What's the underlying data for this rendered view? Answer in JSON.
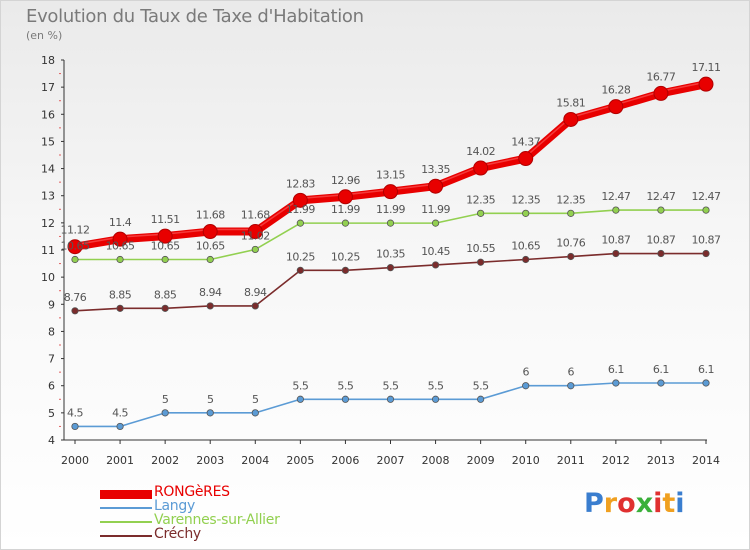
{
  "title": "Evolution du Taux de Taxe d'Habitation",
  "unit": "(en %)",
  "logo": {
    "text": "Proxiti",
    "letters": [
      "P",
      "r",
      "o",
      "x",
      "i",
      "t",
      "i"
    ],
    "colors": [
      "#3a7ecf",
      "#f0a020",
      "#e03030",
      "#3ab03a",
      "#e03030",
      "#f0a020",
      "#3a7ecf"
    ]
  },
  "chart_data": {
    "type": "line",
    "title": "Evolution du Taux de Taxe d'Habitation",
    "ylabel": "(en %)",
    "xlabel": "",
    "ylim": [
      4,
      18
    ],
    "yticks": [
      "4",
      "5",
      "6",
      "7",
      "8",
      "9",
      "10",
      "11",
      "12",
      "13",
      "14",
      "15",
      "16",
      "17",
      "18"
    ],
    "grid": false,
    "legend_position": "bottom-left",
    "categories": [
      "2000",
      "2001",
      "2002",
      "2003",
      "2004",
      "2005",
      "2006",
      "2007",
      "2008",
      "2009",
      "2010",
      "2011",
      "2012",
      "2013",
      "2014"
    ],
    "series": [
      {
        "name": "RONGèRES",
        "color": "#e80000",
        "values": [
          11.12,
          11.4,
          11.51,
          11.68,
          11.68,
          12.83,
          12.96,
          13.15,
          13.35,
          14.02,
          14.37,
          15.81,
          16.28,
          16.77,
          17.11
        ],
        "labels": [
          "11.12",
          "11.4",
          "11.51",
          "11.68",
          "11.68",
          "12.83",
          "12.96",
          "13.15",
          "13.35",
          "14.02",
          "14.37",
          "15.81",
          "16.28",
          "16.77",
          "17.11"
        ]
      },
      {
        "name": "Langy",
        "color": "#5b9bd5",
        "values": [
          4.5,
          4.5,
          5,
          5,
          5,
          5.5,
          5.5,
          5.5,
          5.5,
          5.5,
          6,
          6,
          6.1,
          6.1,
          6.1
        ],
        "labels": [
          "4.5",
          "4.5",
          "5",
          "5",
          "5",
          "5.5",
          "5.5",
          "5.5",
          "5.5",
          "5.5",
          "6",
          "6",
          "6.1",
          "6.1",
          "6.1"
        ]
      },
      {
        "name": "Varennes-sur-Allier",
        "color": "#92d050",
        "values": [
          10.65,
          10.65,
          10.65,
          10.65,
          11.02,
          11.99,
          11.99,
          11.99,
          11.99,
          12.35,
          12.35,
          12.35,
          12.47,
          12.47,
          12.47
        ],
        "labels": [
          "10.65",
          "10.65",
          "10.65",
          "10.65",
          "11.02",
          "11.99",
          "11.99",
          "11.99",
          "11.99",
          "12.35",
          "12.35",
          "12.35",
          "12.47",
          "12.47",
          "12.47"
        ]
      },
      {
        "name": "Créchy",
        "color": "#7b2c2c",
        "values": [
          8.76,
          8.85,
          8.85,
          8.94,
          8.94,
          10.25,
          10.25,
          10.35,
          10.45,
          10.55,
          10.65,
          10.76,
          10.87,
          10.87,
          10.87
        ],
        "labels": [
          "8.76",
          "8.85",
          "8.85",
          "8.94",
          "8.94",
          "10.25",
          "10.25",
          "10.35",
          "10.45",
          "10.55",
          "10.65",
          "10.76",
          "10.87",
          "10.87",
          "10.87"
        ]
      }
    ]
  }
}
